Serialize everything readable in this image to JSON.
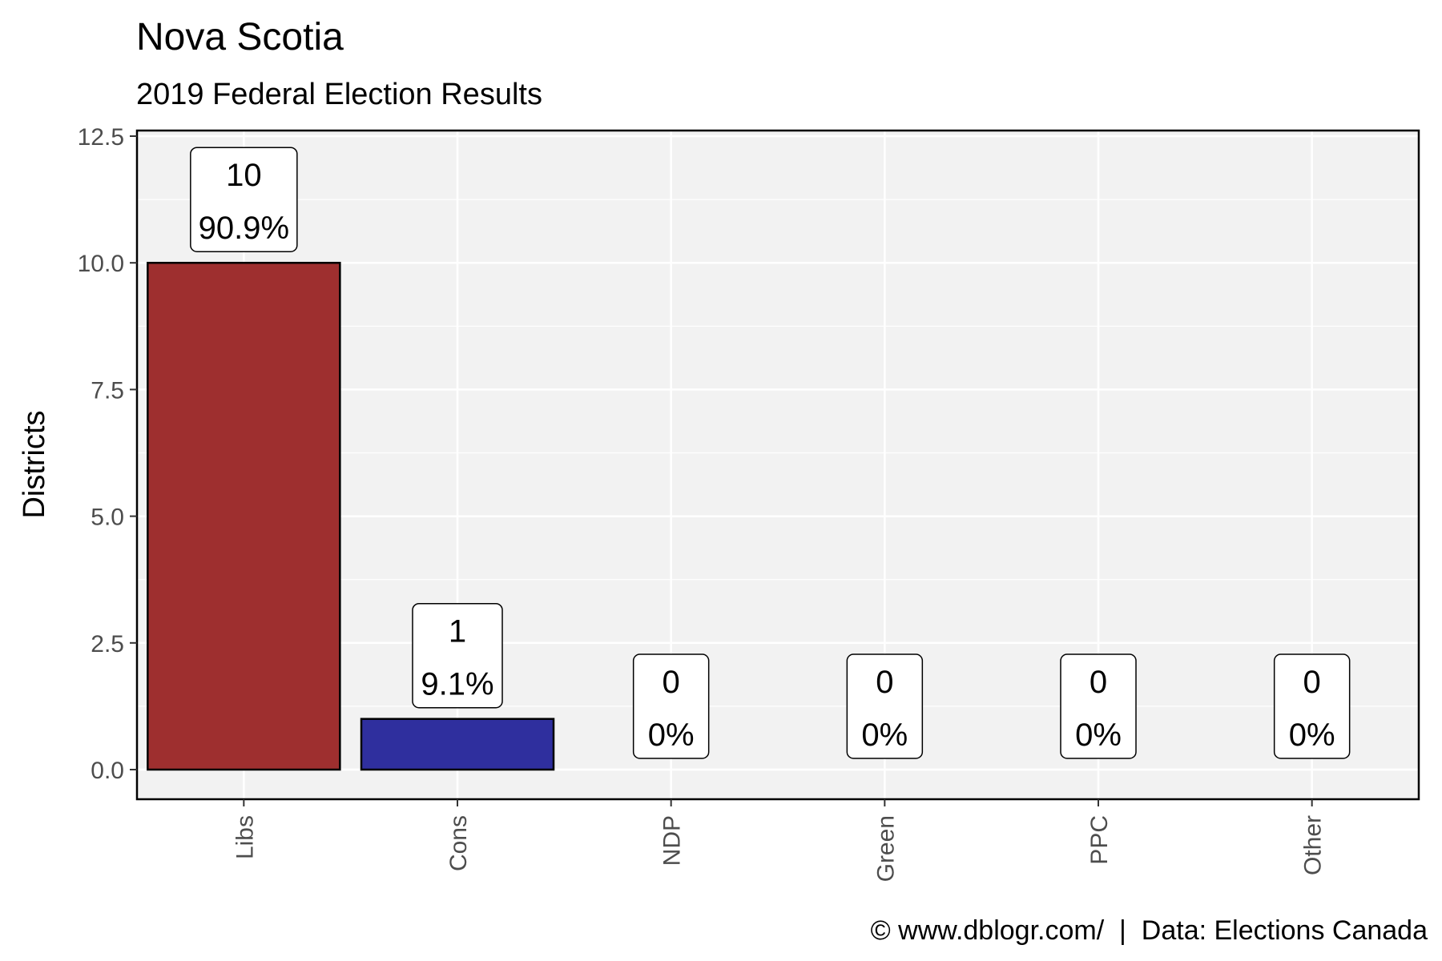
{
  "chart_data": {
    "type": "bar",
    "title": "Nova Scotia",
    "subtitle": "2019 Federal Election Results",
    "ylabel": "Districts",
    "xlabel": "",
    "ylim": [
      0,
      12.5
    ],
    "yticks": [
      0.0,
      2.5,
      5.0,
      7.5,
      10.0,
      12.5
    ],
    "ytick_labels": [
      "0.0",
      "2.5",
      "5.0",
      "7.5",
      "10.0",
      "12.5"
    ],
    "grid": true,
    "legend": "none",
    "categories": [
      "Libs",
      "Cons",
      "NDP",
      "Green",
      "PPC",
      "Other"
    ],
    "values": [
      10,
      1,
      0,
      0,
      0,
      0
    ],
    "value_labels": [
      "10",
      "1",
      "0",
      "0",
      "0",
      "0"
    ],
    "percent_labels": [
      "90.9%",
      "9.1%",
      "0%",
      "0%",
      "0%",
      "0%"
    ],
    "colors": [
      "#9e2f2f",
      "#2f2f9e",
      "#e06020",
      "#2e8b2e",
      "#5b2c8e",
      "#888888"
    ],
    "caption": "© www.dblogr.com/  |  Data: Elections Canada"
  }
}
